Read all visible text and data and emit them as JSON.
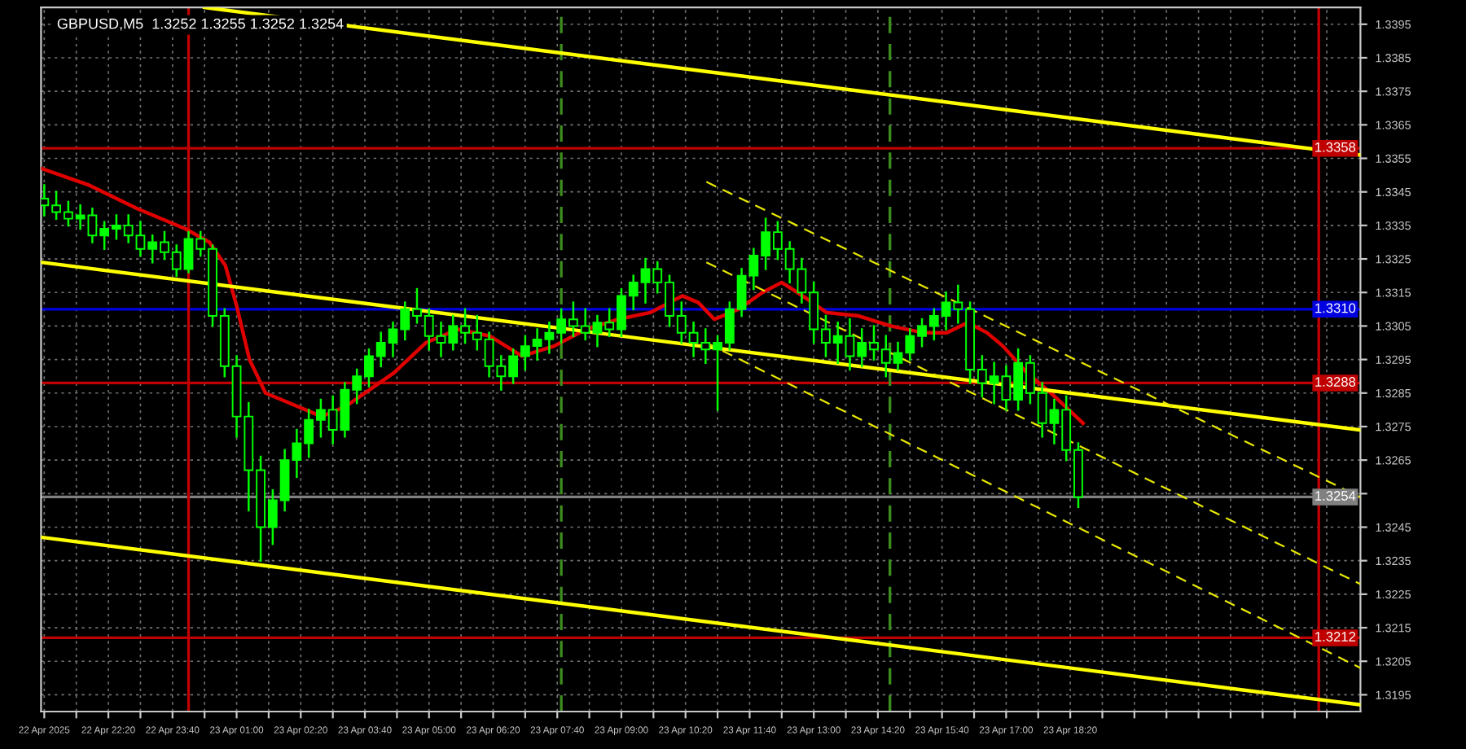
{
  "chart_data": {
    "type": "candlestick",
    "title": "GBPUSD,M5  1.3252 1.3255 1.3252 1.3254",
    "color": "#00ff00",
    "x": [
      "2025-04-22T21:00",
      "2025-04-22T21:15",
      "2025-04-22T21:30",
      "2025-04-22T21:45",
      "2025-04-22T22:00",
      "2025-04-22T22:15",
      "2025-04-22T22:30",
      "2025-04-22T22:45",
      "2025-04-22T23:00",
      "2025-04-22T23:15",
      "2025-04-22T23:30",
      "2025-04-22T23:45",
      "2025-04-23T00:00",
      "2025-04-23T00:15",
      "2025-04-23T00:30",
      "2025-04-23T00:45",
      "2025-04-23T01:00",
      "2025-04-23T01:15",
      "2025-04-23T01:30",
      "2025-04-23T01:45",
      "2025-04-23T02:00",
      "2025-04-23T02:15",
      "2025-04-23T02:30",
      "2025-04-23T02:45",
      "2025-04-23T03:00",
      "2025-04-23T03:15",
      "2025-04-23T03:30",
      "2025-04-23T03:45",
      "2025-04-23T04:00",
      "2025-04-23T04:15",
      "2025-04-23T04:30",
      "2025-04-23T04:45",
      "2025-04-23T05:00",
      "2025-04-23T05:15",
      "2025-04-23T05:30",
      "2025-04-23T05:45",
      "2025-04-23T06:00",
      "2025-04-23T06:15",
      "2025-04-23T06:30",
      "2025-04-23T06:45",
      "2025-04-23T07:00",
      "2025-04-23T07:15",
      "2025-04-23T07:30",
      "2025-04-23T07:45",
      "2025-04-23T08:00",
      "2025-04-23T08:15",
      "2025-04-23T08:30",
      "2025-04-23T08:45",
      "2025-04-23T09:00",
      "2025-04-23T09:15",
      "2025-04-23T09:30",
      "2025-04-23T09:45",
      "2025-04-23T10:00",
      "2025-04-23T10:15",
      "2025-04-23T10:30",
      "2025-04-23T10:45",
      "2025-04-23T11:00",
      "2025-04-23T11:15",
      "2025-04-23T11:30",
      "2025-04-23T11:45",
      "2025-04-23T12:00",
      "2025-04-23T12:15",
      "2025-04-23T12:30",
      "2025-04-23T12:45",
      "2025-04-23T13:00",
      "2025-04-23T13:15",
      "2025-04-23T13:30",
      "2025-04-23T13:45",
      "2025-04-23T14:00",
      "2025-04-23T14:15",
      "2025-04-23T14:30",
      "2025-04-23T14:45",
      "2025-04-23T15:00",
      "2025-04-23T15:15",
      "2025-04-23T15:30",
      "2025-04-23T15:45",
      "2025-04-23T16:00",
      "2025-04-23T16:15",
      "2025-04-23T16:30",
      "2025-04-23T16:45",
      "2025-04-23T17:00",
      "2025-04-23T17:15",
      "2025-04-23T17:30",
      "2025-04-23T17:45",
      "2025-04-23T18:00",
      "2025-04-23T18:15",
      "2025-04-23T18:30"
    ],
    "ohlc": [
      [
        1.3343,
        1.3347,
        1.3338,
        1.3341
      ],
      [
        1.3341,
        1.3345,
        1.3337,
        1.3339
      ],
      [
        1.3339,
        1.3342,
        1.3335,
        1.3337
      ],
      [
        1.3337,
        1.3341,
        1.3334,
        1.3338
      ],
      [
        1.3338,
        1.334,
        1.333,
        1.3332
      ],
      [
        1.3332,
        1.3336,
        1.3328,
        1.3334
      ],
      [
        1.3334,
        1.3338,
        1.3331,
        1.3335
      ],
      [
        1.3335,
        1.3338,
        1.333,
        1.3332
      ],
      [
        1.3332,
        1.3336,
        1.3326,
        1.3328
      ],
      [
        1.3328,
        1.3332,
        1.3324,
        1.333
      ],
      [
        1.333,
        1.3333,
        1.3325,
        1.3327
      ],
      [
        1.3327,
        1.3329,
        1.332,
        1.3322
      ],
      [
        1.3322,
        1.3333,
        1.3321,
        1.3331
      ],
      [
        1.3331,
        1.3333,
        1.3326,
        1.3328
      ],
      [
        1.3328,
        1.3329,
        1.3305,
        1.3308
      ],
      [
        1.3308,
        1.331,
        1.329,
        1.3293
      ],
      [
        1.3293,
        1.3296,
        1.3272,
        1.3278
      ],
      [
        1.3278,
        1.3282,
        1.325,
        1.3262
      ],
      [
        1.3262,
        1.3266,
        1.3235,
        1.3245
      ],
      [
        1.3245,
        1.3256,
        1.324,
        1.3253
      ],
      [
        1.3253,
        1.3268,
        1.325,
        1.3265
      ],
      [
        1.3265,
        1.3274,
        1.326,
        1.327
      ],
      [
        1.327,
        1.328,
        1.3266,
        1.3277
      ],
      [
        1.3277,
        1.3283,
        1.3272,
        1.328
      ],
      [
        1.328,
        1.3284,
        1.327,
        1.3274
      ],
      [
        1.3274,
        1.3288,
        1.3272,
        1.3286
      ],
      [
        1.3286,
        1.3292,
        1.3282,
        1.329
      ],
      [
        1.329,
        1.3298,
        1.3287,
        1.3296
      ],
      [
        1.3296,
        1.3303,
        1.3293,
        1.33
      ],
      [
        1.33,
        1.3306,
        1.3296,
        1.3304
      ],
      [
        1.3304,
        1.3312,
        1.3301,
        1.331
      ],
      [
        1.331,
        1.3316,
        1.3306,
        1.3308
      ],
      [
        1.3308,
        1.331,
        1.3298,
        1.3302
      ],
      [
        1.3302,
        1.3306,
        1.3296,
        1.33
      ],
      [
        1.33,
        1.3308,
        1.3298,
        1.3305
      ],
      [
        1.3305,
        1.331,
        1.33,
        1.3303
      ],
      [
        1.3303,
        1.3308,
        1.3298,
        1.3301
      ],
      [
        1.3301,
        1.3303,
        1.329,
        1.3293
      ],
      [
        1.3293,
        1.3296,
        1.3286,
        1.329
      ],
      [
        1.329,
        1.3298,
        1.3288,
        1.3296
      ],
      [
        1.3296,
        1.3302,
        1.3292,
        1.3299
      ],
      [
        1.3299,
        1.3304,
        1.3295,
        1.3301
      ],
      [
        1.3301,
        1.3306,
        1.3297,
        1.3303
      ],
      [
        1.3303,
        1.331,
        1.33,
        1.3307
      ],
      [
        1.3307,
        1.3312,
        1.3302,
        1.3305
      ],
      [
        1.3305,
        1.331,
        1.3301,
        1.3303
      ],
      [
        1.3303,
        1.3308,
        1.3299,
        1.3306
      ],
      [
        1.3306,
        1.331,
        1.3302,
        1.3304
      ],
      [
        1.3304,
        1.3316,
        1.3302,
        1.3314
      ],
      [
        1.3314,
        1.332,
        1.331,
        1.3318
      ],
      [
        1.3318,
        1.3325,
        1.3312,
        1.3322
      ],
      [
        1.3322,
        1.3324,
        1.3315,
        1.3318
      ],
      [
        1.3318,
        1.332,
        1.3305,
        1.3308
      ],
      [
        1.3308,
        1.3312,
        1.33,
        1.3303
      ],
      [
        1.3303,
        1.3306,
        1.3296,
        1.33
      ],
      [
        1.33,
        1.3304,
        1.3294,
        1.3298
      ],
      [
        1.3298,
        1.3302,
        1.328,
        1.33
      ],
      [
        1.33,
        1.3312,
        1.3298,
        1.331
      ],
      [
        1.331,
        1.3322,
        1.3308,
        1.332
      ],
      [
        1.332,
        1.3328,
        1.3316,
        1.3326
      ],
      [
        1.3326,
        1.3337,
        1.3322,
        1.3333
      ],
      [
        1.3333,
        1.3336,
        1.3325,
        1.3328
      ],
      [
        1.3328,
        1.333,
        1.3318,
        1.3322
      ],
      [
        1.3322,
        1.3325,
        1.3312,
        1.3315
      ],
      [
        1.3315,
        1.3318,
        1.33,
        1.3304
      ],
      [
        1.3304,
        1.3308,
        1.3296,
        1.33
      ],
      [
        1.33,
        1.3306,
        1.3294,
        1.3302
      ],
      [
        1.3302,
        1.3307,
        1.3292,
        1.3296
      ],
      [
        1.3296,
        1.3304,
        1.3293,
        1.33
      ],
      [
        1.33,
        1.3305,
        1.3295,
        1.3298
      ],
      [
        1.3298,
        1.3302,
        1.329,
        1.3294
      ],
      [
        1.3294,
        1.33,
        1.3292,
        1.3297
      ],
      [
        1.3297,
        1.3304,
        1.3295,
        1.3302
      ],
      [
        1.3302,
        1.3307,
        1.3299,
        1.3305
      ],
      [
        1.3305,
        1.331,
        1.3301,
        1.3308
      ],
      [
        1.3308,
        1.3315,
        1.3304,
        1.3312
      ],
      [
        1.3312,
        1.3317,
        1.3306,
        1.331
      ],
      [
        1.331,
        1.3312,
        1.3288,
        1.3292
      ],
      [
        1.3292,
        1.3296,
        1.3284,
        1.3288
      ],
      [
        1.3288,
        1.3294,
        1.3282,
        1.329
      ],
      [
        1.329,
        1.3293,
        1.328,
        1.3283
      ],
      [
        1.3283,
        1.3298,
        1.328,
        1.3294
      ],
      [
        1.3294,
        1.3296,
        1.3282,
        1.3285
      ],
      [
        1.3285,
        1.3288,
        1.3272,
        1.3276
      ],
      [
        1.3276,
        1.3283,
        1.327,
        1.328
      ],
      [
        1.328,
        1.3284,
        1.3265,
        1.3268
      ],
      [
        1.3268,
        1.327,
        1.3251,
        1.3254
      ]
    ],
    "series": [
      {
        "type": "line",
        "color": "#e00000",
        "x": [
          "2025-04-22T20:56",
          "2025-04-22T21:56",
          "2025-04-22T22:56",
          "2025-04-22T23:56",
          "2025-04-23T00:26",
          "2025-04-23T00:46",
          "2025-04-23T01:00",
          "2025-04-23T01:16",
          "2025-04-23T01:36",
          "2025-04-23T02:16",
          "2025-04-23T02:46",
          "2025-04-23T03:16",
          "2025-04-23T03:46",
          "2025-04-23T04:16",
          "2025-04-23T04:56",
          "2025-04-23T05:36",
          "2025-04-23T06:16",
          "2025-04-23T06:56",
          "2025-04-23T07:36",
          "2025-04-23T08:16",
          "2025-04-23T08:56",
          "2025-04-23T09:36",
          "2025-04-23T10:16",
          "2025-04-23T10:36",
          "2025-04-23T10:56",
          "2025-04-23T11:26",
          "2025-04-23T11:56",
          "2025-04-23T12:20",
          "2025-04-23T12:46",
          "2025-04-23T13:16",
          "2025-04-23T13:56",
          "2025-04-23T14:36",
          "2025-04-23T15:16",
          "2025-04-23T15:46",
          "2025-04-23T16:12",
          "2025-04-23T16:36",
          "2025-04-23T16:56",
          "2025-04-23T17:26",
          "2025-04-23T17:56",
          "2025-04-23T18:36"
        ],
        "values": [
          1.3352,
          1.3347,
          1.334,
          1.3334,
          1.333,
          1.3323,
          1.3311,
          1.3295,
          1.3285,
          1.3281,
          1.3278,
          1.3281,
          1.3286,
          1.3291,
          1.33,
          1.3304,
          1.3302,
          1.3296,
          1.3299,
          1.3304,
          1.3307,
          1.3309,
          1.3314,
          1.3312,
          1.3307,
          1.331,
          1.3315,
          1.3318,
          1.3314,
          1.3309,
          1.3308,
          1.3305,
          1.3303,
          1.3303,
          1.3306,
          1.3303,
          1.3299,
          1.3291,
          1.3285,
          1.3276
        ]
      },
      {
        "type": "line",
        "color": "#ffff00",
        "x": [
          "2025-04-23T00:20",
          "2025-04-24T00:22"
        ],
        "values": [
          1.34,
          1.3356
        ]
      },
      {
        "type": "line",
        "color": "#ffff00",
        "x": [
          "2025-04-22T20:56",
          "2025-04-24T00:22"
        ],
        "values": [
          1.3324,
          1.3274
        ]
      },
      {
        "type": "line",
        "color": "#ffff00",
        "x": [
          "2025-04-22T20:56",
          "2025-04-24T00:22"
        ],
        "values": [
          1.3242,
          1.3192
        ]
      },
      {
        "type": "line",
        "color": "#e8e800",
        "line_style": "dashed",
        "x": [
          "2025-04-23T10:46",
          "2025-04-24T00:22"
        ],
        "values": [
          1.3348,
          1.3254
        ]
      },
      {
        "type": "line",
        "color": "#e8e800",
        "line_style": "dashed",
        "x": [
          "2025-04-23T10:46",
          "2025-04-24T00:22"
        ],
        "values": [
          1.3324,
          1.3228
        ]
      },
      {
        "type": "line",
        "color": "#e8e800",
        "line_style": "dashed",
        "x": [
          "2025-04-23T10:46",
          "2025-04-24T00:22"
        ],
        "values": [
          1.33,
          1.3203
        ]
      }
    ],
    "ref_lines": [
      {
        "axis": "y",
        "value": 1.3358,
        "label": "1.3358",
        "color": "#c00000"
      },
      {
        "axis": "y",
        "value": 1.331,
        "label": "1.3310",
        "color": "#0000e0"
      },
      {
        "axis": "y",
        "value": 1.3288,
        "label": "1.3288",
        "color": "#c00000"
      },
      {
        "axis": "y",
        "value": 1.3212,
        "label": "1.3212",
        "color": "#c00000"
      },
      {
        "axis": "y",
        "value": 1.3254,
        "label": "1.3254",
        "color": "#808080"
      },
      {
        "axis": "x",
        "value": "2025-04-23T00:00",
        "color": "#c00000"
      },
      {
        "axis": "x",
        "value": "2025-04-23T23:30",
        "color": "#c00000"
      },
      {
        "axis": "x",
        "value": "2025-04-23T07:45",
        "color": "#3c8c1e",
        "line_style": "dashed"
      },
      {
        "axis": "x",
        "value": "2025-04-23T14:35",
        "color": "#3c8c1e",
        "line_style": "dashed"
      }
    ],
    "xlim": [
      "2025-04-22T20:56",
      "2025-04-24T00:22"
    ],
    "xticks": [
      {
        "value": "2025-04-22T21:00",
        "label": "22 Apr 2025"
      },
      {
        "value": "2025-04-22T21:40",
        "label": null
      },
      {
        "value": "2025-04-22T22:20",
        "label": "22 Apr 22:20"
      },
      {
        "value": "2025-04-22T23:00",
        "label": null
      },
      {
        "value": "2025-04-22T23:40",
        "label": "22 Apr 23:40"
      },
      {
        "value": "2025-04-23T00:20",
        "label": null
      },
      {
        "value": "2025-04-23T01:00",
        "label": "23 Apr 01:00"
      },
      {
        "value": "2025-04-23T01:40",
        "label": null
      },
      {
        "value": "2025-04-23T02:20",
        "label": "23 Apr 02:20"
      },
      {
        "value": "2025-04-23T03:00",
        "label": null
      },
      {
        "value": "2025-04-23T03:40",
        "label": "23 Apr 03:40"
      },
      {
        "value": "2025-04-23T04:20",
        "label": null
      },
      {
        "value": "2025-04-23T05:00",
        "label": "23 Apr 05:00"
      },
      {
        "value": "2025-04-23T05:40",
        "label": null
      },
      {
        "value": "2025-04-23T06:20",
        "label": "23 Apr 06:20"
      },
      {
        "value": "2025-04-23T07:00",
        "label": null
      },
      {
        "value": "2025-04-23T07:40",
        "label": "23 Apr 07:40"
      },
      {
        "value": "2025-04-23T08:20",
        "label": null
      },
      {
        "value": "2025-04-23T09:00",
        "label": "23 Apr 09:00"
      },
      {
        "value": "2025-04-23T09:40",
        "label": null
      },
      {
        "value": "2025-04-23T10:20",
        "label": "23 Apr 10:20"
      },
      {
        "value": "2025-04-23T11:00",
        "label": null
      },
      {
        "value": "2025-04-23T11:40",
        "label": "23 Apr 11:40"
      },
      {
        "value": "2025-04-23T12:20",
        "label": null
      },
      {
        "value": "2025-04-23T13:00",
        "label": "23 Apr 13:00"
      },
      {
        "value": "2025-04-23T13:40",
        "label": null
      },
      {
        "value": "2025-04-23T14:20",
        "label": "23 Apr 14:20"
      },
      {
        "value": "2025-04-23T15:00",
        "label": null
      },
      {
        "value": "2025-04-23T15:40",
        "label": "23 Apr 15:40"
      },
      {
        "value": "2025-04-23T16:20",
        "label": null
      },
      {
        "value": "2025-04-23T17:00",
        "label": "23 Apr 17:00"
      },
      {
        "value": "2025-04-23T17:40",
        "label": null
      },
      {
        "value": "2025-04-23T18:20",
        "label": "23 Apr 18:20"
      },
      {
        "value": "2025-04-23T19:00",
        "label": null
      },
      {
        "value": "2025-04-23T19:40",
        "label": null
      },
      {
        "value": "2025-04-23T20:20",
        "label": null
      },
      {
        "value": "2025-04-23T21:00",
        "label": null
      },
      {
        "value": "2025-04-23T21:40",
        "label": null
      },
      {
        "value": "2025-04-23T22:20",
        "label": null
      },
      {
        "value": "2025-04-23T23:00",
        "label": null
      },
      {
        "value": "2025-04-23T23:40",
        "label": null
      }
    ],
    "ylim": [
      1.319,
      1.34
    ],
    "yticks": [
      1.3195,
      1.3205,
      1.3215,
      1.3225,
      1.3235,
      1.3245,
      {
        "value": 1.3255,
        "label": null
      },
      1.3265,
      1.3275,
      1.3285,
      1.3295,
      1.3305,
      1.3315,
      1.3325,
      1.3335,
      1.3345,
      1.3355,
      1.3365,
      1.3375,
      1.3385,
      1.3395
    ],
    "grid": true
  }
}
